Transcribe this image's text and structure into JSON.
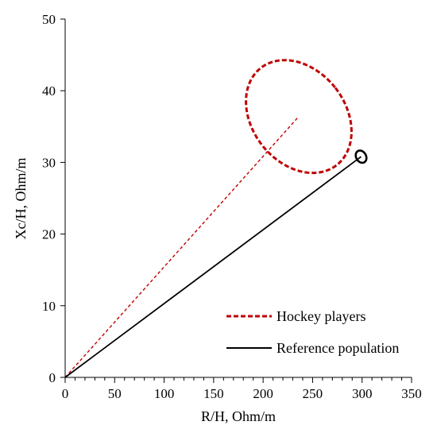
{
  "chart_data": {
    "type": "line",
    "title": "",
    "xlabel": "R/H, Ohm/m",
    "ylabel": "Xc/H, Ohm/m",
    "xlim": [
      0,
      350
    ],
    "ylim": [
      0,
      50
    ],
    "x_ticks": [
      0,
      50,
      100,
      150,
      200,
      250,
      300,
      350
    ],
    "y_ticks": [
      0,
      10,
      20,
      30,
      40,
      50
    ],
    "x_minor_step": 10,
    "grid": false,
    "legend_position": "bottom-right",
    "series": [
      {
        "name": "Hockey players",
        "color": "#c00000",
        "style": "dashed",
        "vector": {
          "x": [
            0,
            236
          ],
          "y": [
            0,
            36.4
          ]
        },
        "ellipse": {
          "center": [
            236,
            36.4
          ],
          "semi_x": 47,
          "semi_y": 8.6,
          "rotation_deg": 38
        }
      },
      {
        "name": "Reference population",
        "color": "#000000",
        "style": "solid",
        "vector": {
          "x": [
            0,
            299
          ],
          "y": [
            0,
            30.8
          ]
        },
        "ellipse": {
          "center": [
            299,
            30.8
          ],
          "semi_x": 5,
          "semi_y": 0.9,
          "rotation_deg": 30
        }
      }
    ]
  }
}
